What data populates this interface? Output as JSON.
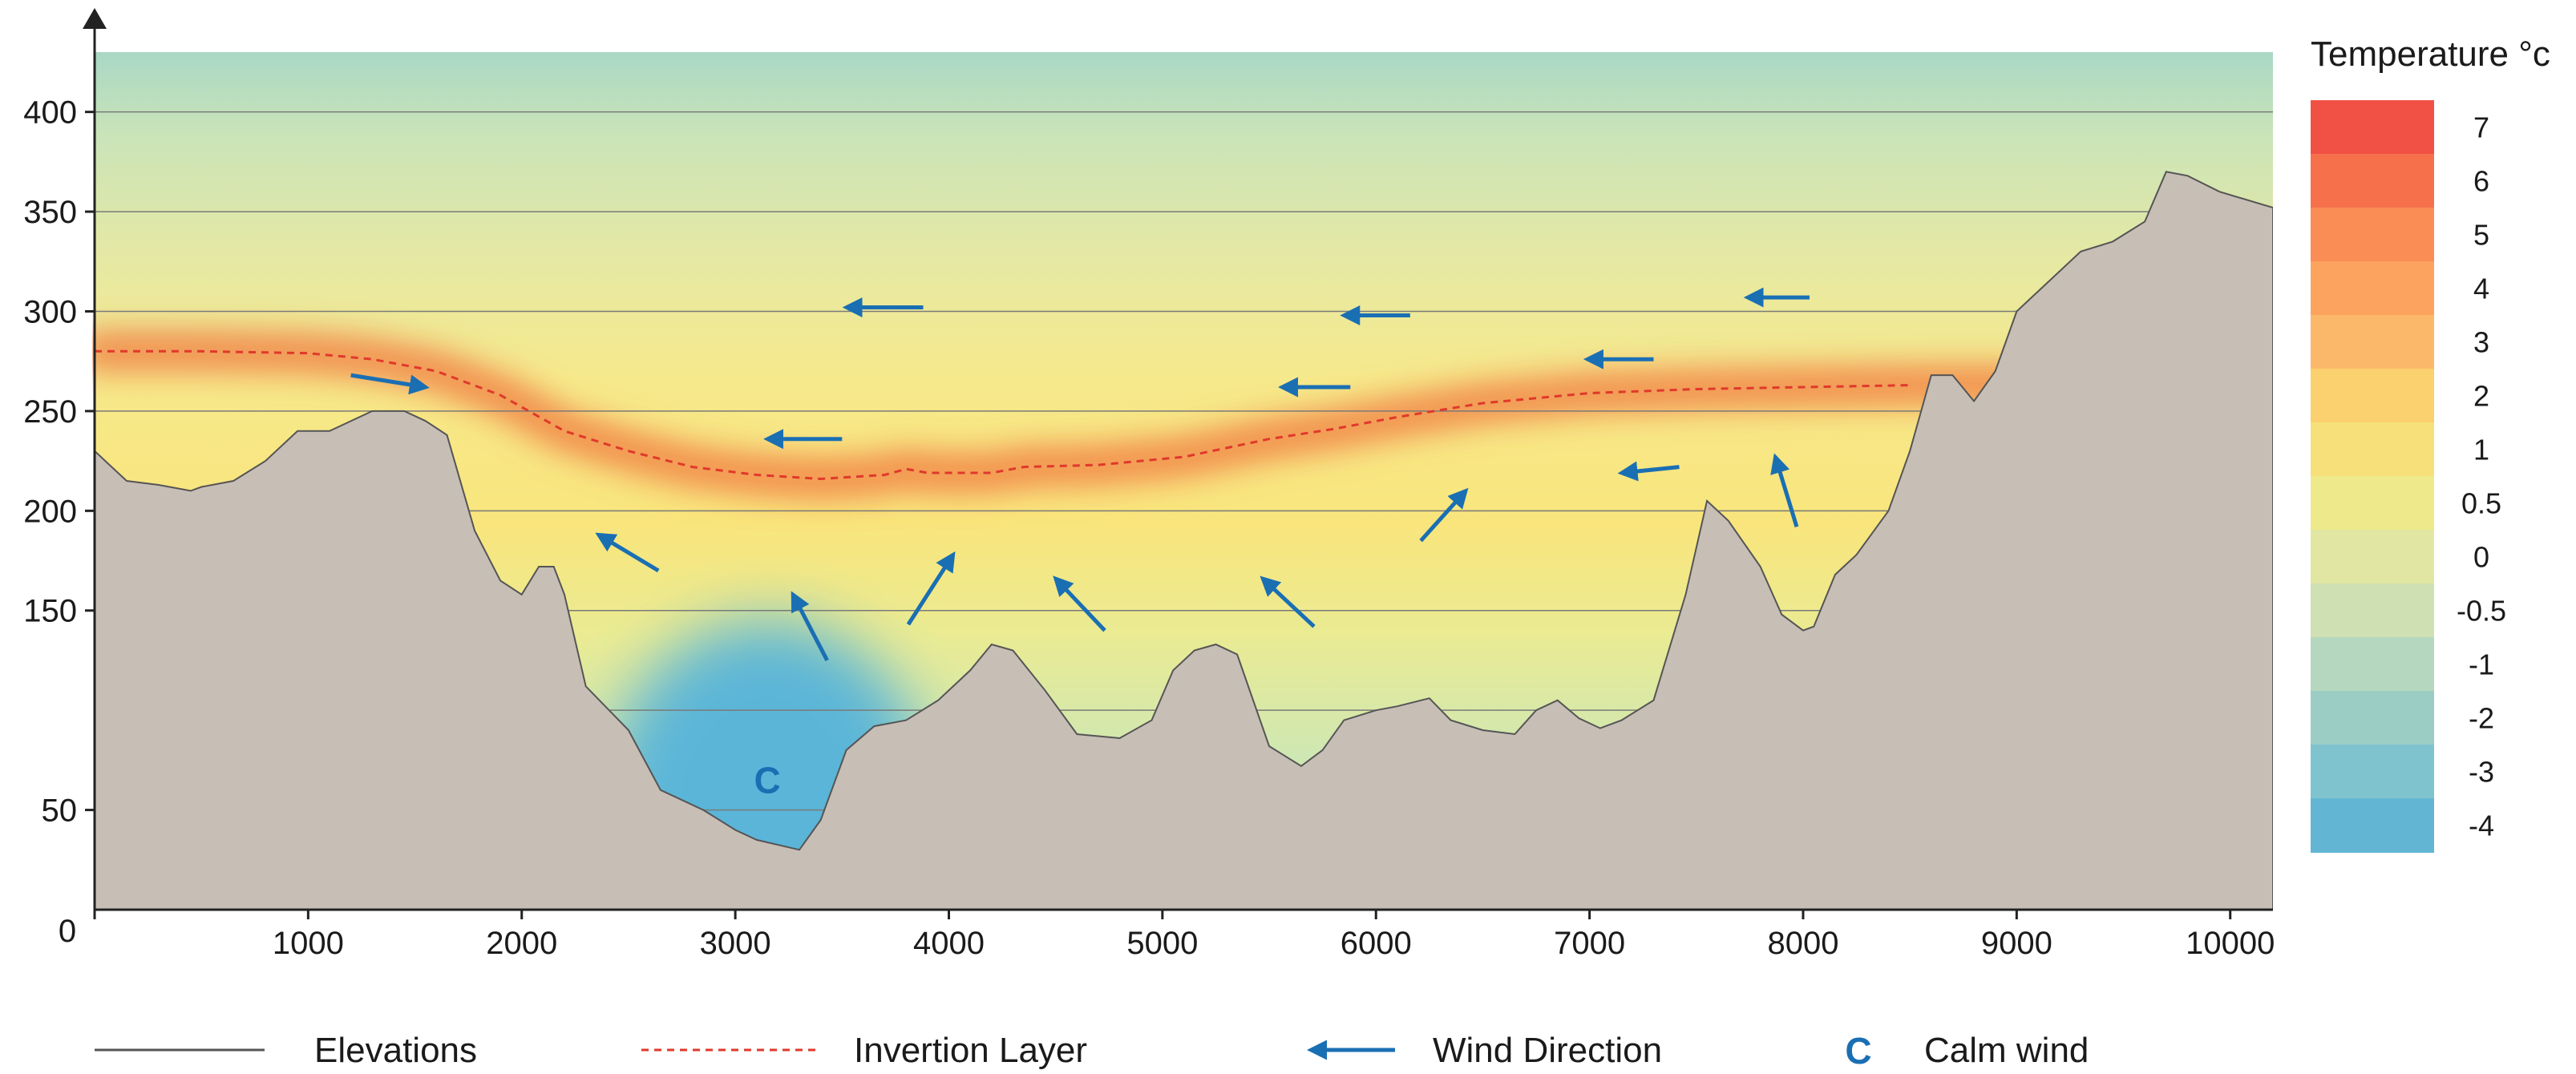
{
  "chart_data": {
    "type": "area",
    "title": "",
    "xlabel": "",
    "ylabel": "",
    "xlim": [
      0,
      10200
    ],
    "ylim": [
      0,
      430
    ],
    "x_ticks": [
      0,
      1000,
      2000,
      3000,
      4000,
      5000,
      6000,
      7000,
      8000,
      9000,
      10000
    ],
    "y_ticks": [
      50,
      150,
      200,
      250,
      300,
      350,
      400
    ],
    "y_gridlines": [
      50,
      100,
      150,
      200,
      250,
      300,
      350,
      400
    ],
    "origin_label": "0",
    "elevation": [
      [
        0,
        230
      ],
      [
        150,
        215
      ],
      [
        300,
        213
      ],
      [
        450,
        210
      ],
      [
        500,
        212
      ],
      [
        650,
        215
      ],
      [
        800,
        225
      ],
      [
        950,
        240
      ],
      [
        1100,
        240
      ],
      [
        1300,
        250
      ],
      [
        1450,
        250
      ],
      [
        1550,
        245
      ],
      [
        1650,
        238
      ],
      [
        1780,
        190
      ],
      [
        1900,
        165
      ],
      [
        2000,
        158
      ],
      [
        2080,
        172
      ],
      [
        2150,
        172
      ],
      [
        2200,
        158
      ],
      [
        2300,
        112
      ],
      [
        2500,
        90
      ],
      [
        2650,
        60
      ],
      [
        2850,
        50
      ],
      [
        3000,
        40
      ],
      [
        3100,
        35
      ],
      [
        3300,
        30
      ],
      [
        3400,
        45
      ],
      [
        3520,
        80
      ],
      [
        3650,
        92
      ],
      [
        3800,
        95
      ],
      [
        3950,
        105
      ],
      [
        4100,
        120
      ],
      [
        4200,
        133
      ],
      [
        4300,
        130
      ],
      [
        4450,
        110
      ],
      [
        4600,
        88
      ],
      [
        4800,
        86
      ],
      [
        4950,
        95
      ],
      [
        5050,
        120
      ],
      [
        5150,
        130
      ],
      [
        5250,
        133
      ],
      [
        5350,
        128
      ],
      [
        5500,
        82
      ],
      [
        5650,
        72
      ],
      [
        5750,
        80
      ],
      [
        5850,
        95
      ],
      [
        6000,
        100
      ],
      [
        6100,
        102
      ],
      [
        6250,
        106
      ],
      [
        6350,
        95
      ],
      [
        6500,
        90
      ],
      [
        6650,
        88
      ],
      [
        6750,
        100
      ],
      [
        6850,
        105
      ],
      [
        6950,
        96
      ],
      [
        7050,
        91
      ],
      [
        7150,
        95
      ],
      [
        7300,
        105
      ],
      [
        7450,
        158
      ],
      [
        7550,
        205
      ],
      [
        7650,
        195
      ],
      [
        7800,
        172
      ],
      [
        7900,
        148
      ],
      [
        8000,
        140
      ],
      [
        8050,
        142
      ],
      [
        8150,
        168
      ],
      [
        8250,
        178
      ],
      [
        8400,
        200
      ],
      [
        8500,
        230
      ],
      [
        8600,
        268
      ],
      [
        8700,
        268
      ],
      [
        8800,
        255
      ],
      [
        8900,
        270
      ],
      [
        9000,
        300
      ],
      [
        9100,
        310
      ],
      [
        9300,
        330
      ],
      [
        9450,
        335
      ],
      [
        9600,
        345
      ],
      [
        9700,
        370
      ],
      [
        9800,
        368
      ],
      [
        9950,
        360
      ],
      [
        10200,
        352
      ]
    ],
    "inversion_layer": [
      [
        0,
        280
      ],
      [
        500,
        280
      ],
      [
        1000,
        279
      ],
      [
        1300,
        276
      ],
      [
        1600,
        270
      ],
      [
        1900,
        258
      ],
      [
        2200,
        240
      ],
      [
        2500,
        230
      ],
      [
        2800,
        222
      ],
      [
        3100,
        218
      ],
      [
        3400,
        216
      ],
      [
        3700,
        218
      ],
      [
        3800,
        221
      ],
      [
        3900,
        219
      ],
      [
        4200,
        219
      ],
      [
        4350,
        222
      ],
      [
        4700,
        223
      ],
      [
        5100,
        227
      ],
      [
        5500,
        236
      ],
      [
        5800,
        241
      ],
      [
        6100,
        247
      ],
      [
        6500,
        254
      ],
      [
        7000,
        259
      ],
      [
        7500,
        261
      ],
      [
        8000,
        262
      ],
      [
        8500,
        263
      ]
    ],
    "wind_arrows": [
      {
        "from": [
          1200,
          268
        ],
        "to": [
          1550,
          262
        ]
      },
      {
        "from": [
          3880,
          302
        ],
        "to": [
          3520,
          302
        ]
      },
      {
        "from": [
          3500,
          236
        ],
        "to": [
          3150,
          236
        ]
      },
      {
        "from": [
          2640,
          170
        ],
        "to": [
          2360,
          188
        ]
      },
      {
        "from": [
          3430,
          125
        ],
        "to": [
          3270,
          158
        ]
      },
      {
        "from": [
          3810,
          143
        ],
        "to": [
          4020,
          178
        ]
      },
      {
        "from": [
          4730,
          140
        ],
        "to": [
          4500,
          166
        ]
      },
      {
        "from": [
          5710,
          142
        ],
        "to": [
          5470,
          166
        ]
      },
      {
        "from": [
          6160,
          298
        ],
        "to": [
          5850,
          298
        ]
      },
      {
        "from": [
          5880,
          262
        ],
        "to": [
          5560,
          262
        ]
      },
      {
        "from": [
          6210,
          185
        ],
        "to": [
          6420,
          210
        ]
      },
      {
        "from": [
          7300,
          276
        ],
        "to": [
          6990,
          276
        ]
      },
      {
        "from": [
          7420,
          222
        ],
        "to": [
          7150,
          219
        ]
      },
      {
        "from": [
          8030,
          307
        ],
        "to": [
          7740,
          307
        ]
      },
      {
        "from": [
          7970,
          192
        ],
        "to": [
          7870,
          227
        ]
      }
    ],
    "calm_wind": {
      "x": 3150,
      "y": 65,
      "label": "C"
    },
    "colorbar": {
      "title": "Temperature °c",
      "labels": [
        "7",
        "6",
        "5",
        "4",
        "3",
        "2",
        "1",
        "0.5",
        "0",
        "-0.5",
        "-1",
        "-2",
        "-3",
        "-4"
      ],
      "colors": [
        "#f15145",
        "#f6704c",
        "#f98d55",
        "#fba35f",
        "#fcb86a",
        "#fbd06e",
        "#f7e07a",
        "#eee98a",
        "#e1e6a3",
        "#cfe0b2",
        "#b5d7bf",
        "#9ccdc5",
        "#7fc3ce",
        "#62b6d4"
      ]
    },
    "legend": [
      {
        "key": "elevations",
        "label": "Elevations"
      },
      {
        "key": "inversion",
        "label": "Invertion Layer"
      },
      {
        "key": "wind",
        "label": "Wind Direction"
      },
      {
        "key": "calm",
        "symbol": "C",
        "label": "Calm wind"
      }
    ]
  }
}
